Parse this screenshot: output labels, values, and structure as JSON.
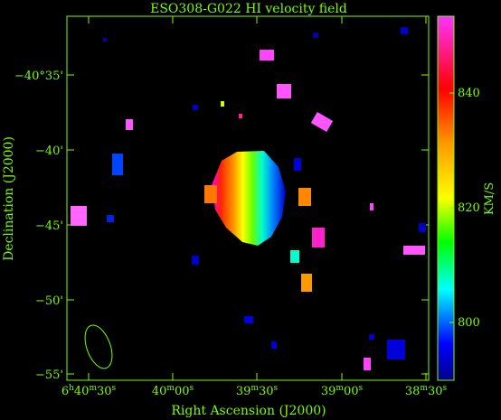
{
  "title": "ESO308-G022   HI velocity field",
  "x_axis": {
    "label": "Right Ascension (J2000)",
    "ticks": [
      {
        "h": "6",
        "hu": "h",
        "m": "40",
        "mu": "m",
        "s": "30",
        "su": "s"
      },
      {
        "m": "40",
        "mu": "m",
        "s": "00",
        "su": "s"
      },
      {
        "m": "39",
        "mu": "m",
        "s": "30",
        "su": "s"
      },
      {
        "m": "39",
        "mu": "m",
        "s": "00",
        "su": "s"
      },
      {
        "m": "38",
        "mu": "m",
        "s": "30",
        "su": "s"
      }
    ]
  },
  "y_axis": {
    "label": "Declination (J2000)",
    "ticks": [
      "−40°35'",
      "−40'",
      "−45'",
      "−50'",
      "−55'"
    ]
  },
  "colorbar": {
    "label": "KM/S",
    "ticks": [
      "840",
      "820",
      "800"
    ],
    "colors": [
      "#ff33ff",
      "#ff0000",
      "#ff9900",
      "#ffff00",
      "#00ff00",
      "#00ffff",
      "#0000ff",
      "#000088"
    ]
  },
  "colors": {
    "axis": "#7cfc00",
    "background": "#000000",
    "beam": "#7cfc00"
  }
}
